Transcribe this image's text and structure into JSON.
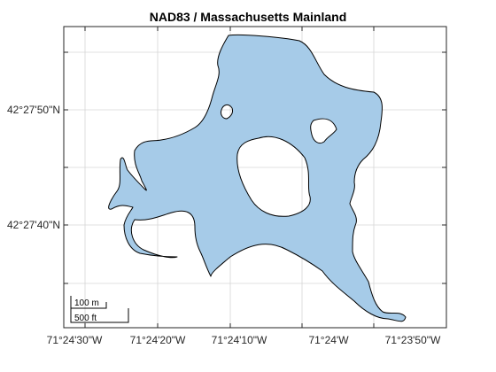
{
  "map": {
    "title": "NAD83 / Massachusetts Mainland",
    "longitude_ticks": [
      "71°24'30\"W",
      "71°24'20\"W",
      "71°24'10\"W",
      "71°24'W",
      "71°23'50\"W"
    ],
    "latitude_ticks": [
      "42°27'50\"N",
      "42°27'40\"N"
    ],
    "scale_bar": {
      "metric_label": "100 m",
      "imperial_label": "500 ft"
    },
    "grid": true,
    "colors": {
      "water": "#a6cbe8",
      "outline": "#000000",
      "grid": "#d6d6d6",
      "frame": "#262626"
    }
  }
}
